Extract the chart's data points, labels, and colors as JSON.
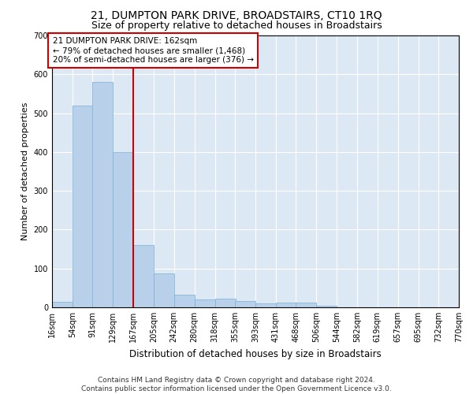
{
  "title": "21, DUMPTON PARK DRIVE, BROADSTAIRS, CT10 1RQ",
  "subtitle": "Size of property relative to detached houses in Broadstairs",
  "xlabel": "Distribution of detached houses by size in Broadstairs",
  "ylabel": "Number of detached properties",
  "bar_color": "#b8d0ea",
  "bar_edgecolor": "#7aafd4",
  "background_color": "#dde8f5",
  "grid_color": "#ffffff",
  "annotation_text": "21 DUMPTON PARK DRIVE: 162sqm\n← 79% of detached houses are smaller (1,468)\n20% of semi-detached houses are larger (376) →",
  "vline_x": 167,
  "bin_edges": [
    16,
    54,
    91,
    129,
    167,
    205,
    242,
    280,
    318,
    355,
    393,
    431,
    468,
    506,
    544,
    582,
    619,
    657,
    695,
    732,
    770
  ],
  "bar_heights": [
    15,
    520,
    580,
    400,
    160,
    88,
    33,
    20,
    22,
    17,
    10,
    12,
    12,
    5,
    1,
    0,
    0,
    0,
    0,
    0
  ],
  "ylim": [
    0,
    700
  ],
  "yticks": [
    0,
    100,
    200,
    300,
    400,
    500,
    600,
    700
  ],
  "footnote": "Contains HM Land Registry data © Crown copyright and database right 2024.\nContains public sector information licensed under the Open Government Licence v3.0.",
  "annotation_box_edgecolor": "#cc0000",
  "vline_color": "#cc0000",
  "title_fontsize": 10,
  "subtitle_fontsize": 9,
  "xlabel_fontsize": 8.5,
  "ylabel_fontsize": 8,
  "tick_fontsize": 7,
  "annotation_fontsize": 7.5,
  "footnote_fontsize": 6.5
}
